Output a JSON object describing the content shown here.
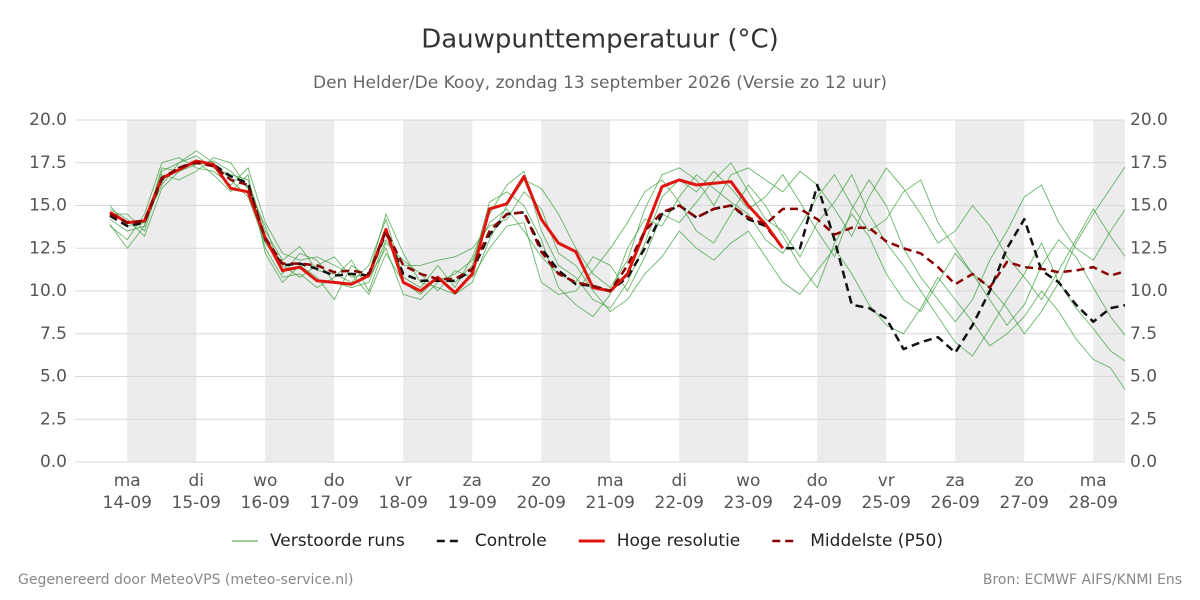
{
  "chart_data": {
    "type": "line",
    "title": "Dauwpunttemperatuur (°C)",
    "subtitle": "Den Helder/De Kooy, zondag 13 september 2026 (Versie zo 12 uur)",
    "footer_left": "Gegenereerd door MeteoVPS (meteo-service.nl)",
    "footer_right": "Bron: ECMWF AIFS/KNMI Ens",
    "categories": [
      null,
      "14-09",
      null,
      null,
      null,
      "15-09",
      null,
      null,
      null,
      "16-09",
      null,
      null,
      null,
      "17-09",
      null,
      null,
      null,
      "18-09",
      null,
      null,
      null,
      "19-09",
      null,
      null,
      null,
      "20-09",
      null,
      null,
      null,
      "21-09",
      null,
      null,
      null,
      "22-09",
      null,
      null,
      null,
      "23-09",
      null,
      null,
      null,
      "24-09",
      null,
      null,
      null,
      "25-09",
      null,
      null,
      null,
      "26-09",
      null,
      null,
      null,
      "27-09",
      null,
      null,
      null,
      "28-09",
      null,
      null
    ],
    "weekdays": [
      null,
      "ma",
      null,
      null,
      null,
      "di",
      null,
      null,
      null,
      "wo",
      null,
      null,
      null,
      "do",
      null,
      null,
      null,
      "vr",
      null,
      null,
      null,
      "za",
      null,
      null,
      null,
      "zo",
      null,
      null,
      null,
      "ma",
      null,
      null,
      null,
      "di",
      null,
      null,
      null,
      "wo",
      null,
      null,
      null,
      "do",
      null,
      null,
      null,
      "vr",
      null,
      null,
      null,
      "za",
      null,
      null,
      null,
      "zo",
      null,
      null,
      null,
      "ma",
      null,
      null
    ],
    "ylim": [
      0,
      20
    ],
    "yticks": [
      {
        "value": 0,
        "label": "0.0"
      },
      {
        "value": 2.5,
        "label": "2.5"
      },
      {
        "value": 5,
        "label": "5.0"
      },
      {
        "value": 7.5,
        "label": "7.5"
      },
      {
        "value": 10,
        "label": "10.0"
      },
      {
        "value": 12.5,
        "label": "12.5"
      },
      {
        "value": 15,
        "label": "15.0"
      },
      {
        "value": 17.5,
        "label": "17.5"
      },
      {
        "value": 20,
        "label": "20.0"
      }
    ],
    "grid": true,
    "series": [
      {
        "name": "Verstoorde runs",
        "color": "#3a9e3a",
        "members": [
          [
            14.2,
            13.5,
            13.8,
            17.0,
            17.5,
            17.9,
            17.2,
            16.8,
            16.5,
            13.5,
            11.8,
            12.6,
            11.2,
            11.0,
            10.5,
            11.5,
            14.2,
            10.8,
            10.2,
            11.5,
            10.2,
            12.0,
            14.5,
            16.2,
            17.0,
            13.5,
            11.5,
            10.8,
            9.5,
            9.0,
            10.5,
            12.8,
            15.5,
            16.5,
            15.8,
            17.0,
            16.0,
            14.8,
            15.5,
            16.8,
            15.2,
            13.5,
            12.0,
            14.8,
            16.5,
            15.0,
            12.5,
            10.8,
            9.5,
            8.2,
            9.5,
            11.8,
            13.5,
            15.5,
            16.2,
            14.0,
            12.5,
            11.8,
            13.5,
            15.0
          ],
          [
            14.8,
            14.2,
            13.2,
            16.0,
            17.0,
            17.4,
            17.6,
            17.0,
            16.0,
            12.5,
            10.8,
            11.0,
            10.2,
            10.8,
            11.8,
            10.0,
            12.8,
            11.8,
            11.0,
            10.0,
            11.2,
            10.8,
            12.5,
            13.8,
            14.0,
            10.5,
            9.8,
            10.0,
            11.2,
            12.5,
            14.0,
            15.8,
            16.5,
            15.2,
            13.5,
            12.8,
            14.5,
            16.2,
            15.0,
            13.2,
            11.5,
            10.2,
            12.8,
            14.5,
            13.2,
            11.0,
            9.5,
            8.8,
            10.5,
            12.2,
            11.0,
            9.5,
            8.0,
            9.2,
            11.5,
            13.0,
            12.0,
            10.2,
            8.5,
            7.2
          ],
          [
            13.8,
            13.0,
            14.5,
            17.5,
            17.8,
            17.2,
            17.0,
            16.2,
            17.2,
            14.0,
            12.2,
            11.8,
            12.0,
            11.5,
            11.0,
            9.8,
            12.2,
            10.5,
            9.8,
            10.8,
            10.5,
            11.5,
            15.2,
            15.8,
            15.0,
            13.0,
            10.2,
            9.2,
            8.5,
            9.8,
            12.5,
            14.2,
            13.8,
            15.5,
            16.8,
            16.0,
            15.2,
            14.5,
            13.0,
            12.2,
            13.8,
            15.5,
            16.8,
            15.0,
            13.5,
            14.2,
            15.8,
            16.5,
            14.0,
            12.5,
            11.0,
            10.2,
            9.0,
            7.5,
            8.8,
            10.5,
            12.8,
            14.5,
            16.0,
            17.5
          ],
          [
            14.5,
            14.5,
            13.5,
            16.8,
            16.5,
            17.0,
            17.8,
            17.5,
            16.0,
            13.8,
            11.0,
            12.2,
            11.8,
            10.5,
            10.2,
            10.5,
            13.0,
            11.5,
            11.5,
            11.8,
            12.0,
            12.5,
            13.8,
            14.2,
            15.8,
            14.8,
            12.2,
            11.5,
            10.0,
            8.8,
            9.5,
            11.0,
            12.0,
            13.5,
            12.5,
            11.8,
            12.8,
            13.5,
            12.0,
            10.5,
            9.8,
            11.2,
            12.5,
            11.0,
            9.2,
            8.0,
            7.5,
            9.0,
            10.8,
            9.5,
            8.2,
            6.8,
            7.5,
            8.5,
            10.0,
            8.8,
            7.2,
            6.0,
            5.5,
            4.0
          ],
          [
            15.0,
            13.8,
            14.0,
            16.2,
            17.5,
            18.2,
            17.5,
            16.5,
            15.5,
            12.8,
            11.5,
            10.8,
            11.5,
            12.0,
            10.8,
            11.0,
            14.5,
            12.2,
            10.5,
            10.2,
            9.8,
            10.5,
            13.0,
            15.0,
            16.5,
            16.0,
            14.5,
            12.5,
            11.0,
            10.2,
            11.8,
            14.8,
            16.8,
            17.2,
            16.5,
            15.0,
            16.8,
            17.2,
            16.5,
            15.8,
            17.0,
            16.2,
            14.8,
            13.2,
            15.5,
            17.2,
            16.0,
            14.5,
            12.8,
            13.5,
            15.0,
            13.8,
            12.0,
            10.8,
            9.5,
            11.2,
            13.0,
            14.8,
            13.2,
            11.8
          ],
          [
            13.9,
            12.5,
            13.8,
            17.2,
            17.0,
            17.6,
            16.8,
            15.8,
            16.8,
            12.2,
            10.5,
            11.5,
            10.8,
            9.5,
            11.5,
            10.8,
            12.5,
            9.8,
            9.5,
            10.5,
            11.0,
            11.8,
            14.0,
            14.8,
            13.5,
            12.0,
            11.0,
            10.5,
            12.0,
            11.5,
            10.0,
            12.0,
            14.5,
            14.0,
            15.2,
            16.5,
            17.5,
            15.8,
            14.2,
            13.5,
            12.0,
            14.0,
            15.2,
            16.8,
            14.5,
            12.8,
            11.5,
            10.0,
            8.5,
            7.0,
            6.2,
            7.8,
            9.5,
            11.0,
            12.8,
            10.5,
            9.0,
            7.8,
            6.5,
            5.8
          ]
        ]
      },
      {
        "name": "Controle",
        "color": "#111111",
        "dash": true,
        "values": [
          14.4,
          13.8,
          14.0,
          16.5,
          17.2,
          17.6,
          17.4,
          16.7,
          16.3,
          13.0,
          11.5,
          11.6,
          11.3,
          10.9,
          11.0,
          10.9,
          13.4,
          11.0,
          10.6,
          10.6,
          10.6,
          11.2,
          13.3,
          14.5,
          14.6,
          12.5,
          11.2,
          10.4,
          10.3,
          10.0,
          10.8,
          12.5,
          14.5,
          15.0,
          14.3,
          14.8,
          15.0,
          14.2,
          13.8,
          12.5,
          12.5,
          16.2,
          13.0,
          9.2,
          9.0,
          8.4,
          6.6,
          7.0,
          7.3,
          6.4,
          8.0,
          10.0,
          12.5,
          14.2,
          11.2,
          10.5,
          9.2,
          8.2,
          9.0,
          9.2
        ]
      },
      {
        "name": "Hoge resolutie",
        "color": "#e0140f",
        "values": [
          14.6,
          14.0,
          14.1,
          16.6,
          17.1,
          17.6,
          17.4,
          16.0,
          15.8,
          13.1,
          11.2,
          11.4,
          10.6,
          10.5,
          10.4,
          10.9,
          13.6,
          10.5,
          10.0,
          10.8,
          9.9,
          11.0,
          14.8,
          15.1,
          16.7,
          14.2,
          12.8,
          12.3,
          10.2,
          10.0,
          11.0,
          13.5,
          16.1,
          16.5,
          16.2,
          16.3,
          16.4,
          15.0,
          13.9,
          12.5,
          null,
          null,
          null,
          null,
          null,
          null,
          null,
          null,
          null,
          null,
          null,
          null,
          null,
          null,
          null,
          null,
          null,
          null,
          null,
          null
        ]
      },
      {
        "name": "Middelste (P50)",
        "color": "#8b0000",
        "dash": true,
        "values": [
          14.5,
          14.0,
          14.1,
          16.6,
          17.2,
          17.5,
          17.3,
          16.5,
          16.2,
          13.1,
          11.6,
          11.6,
          11.5,
          11.1,
          11.2,
          11.0,
          13.5,
          11.5,
          11.0,
          10.7,
          10.7,
          11.3,
          13.5,
          14.5,
          14.6,
          12.3,
          11.0,
          10.5,
          10.3,
          10.0,
          11.5,
          13.5,
          14.6,
          15.0,
          14.3,
          14.8,
          15.0,
          14.3,
          13.9,
          14.8,
          14.8,
          14.2,
          13.3,
          13.7,
          13.7,
          12.9,
          12.5,
          12.2,
          11.4,
          10.4,
          11.0,
          10.2,
          11.7,
          11.4,
          11.3,
          11.1,
          11.2,
          11.4,
          10.9,
          11.2
        ]
      }
    ]
  }
}
